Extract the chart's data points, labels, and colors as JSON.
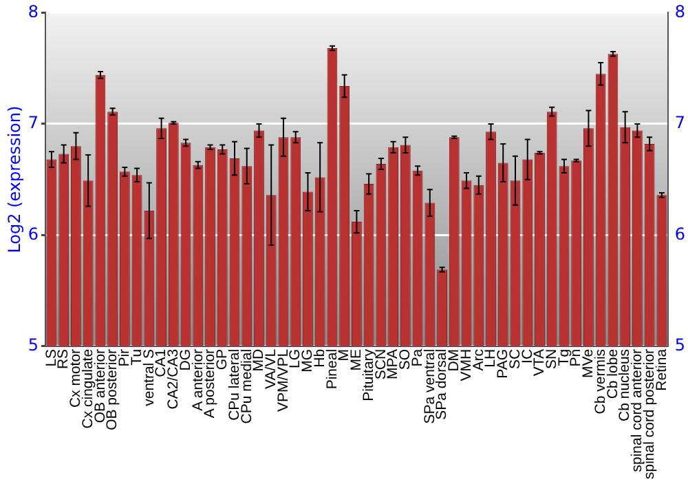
{
  "chart_data": {
    "type": "bar",
    "ylabel": "Log2 (expression)",
    "categories": [
      "LS",
      "RS",
      "Cx motor",
      "Cx cingulate",
      "OB anterior",
      "OB posterior",
      "Pir",
      "Tu",
      "ventral S",
      "CA1",
      "CA2/CA3",
      "DG",
      "A anterior",
      "A posterior",
      "GP",
      "CPu lateral",
      "CPu medial",
      "MD",
      "VA/VL",
      "VPM/VPL",
      "LG",
      "MG",
      "Hb",
      "Pineal",
      "M",
      "ME",
      "Pituitary",
      "SCN",
      "MPA",
      "SO",
      "Pa",
      "SPa ventral",
      "SPa dorsal",
      "DM",
      "VMH",
      "Arc",
      "LH",
      "PAG",
      "SC",
      "IC",
      "VTA",
      "SN",
      "Tg",
      "Pn",
      "MVe",
      "Cb vermis",
      "Cb lobe",
      "Cb nucleus",
      "spinal cord anterior",
      "spinal cord posterior",
      "Retina"
    ],
    "values": [
      6.68,
      6.73,
      6.8,
      6.49,
      7.44,
      7.11,
      6.57,
      6.54,
      6.22,
      6.96,
      7.01,
      6.83,
      6.63,
      6.79,
      6.77,
      6.69,
      6.62,
      6.94,
      6.36,
      6.88,
      6.88,
      6.39,
      6.52,
      7.68,
      7.34,
      6.12,
      6.46,
      6.64,
      6.79,
      6.81,
      6.58,
      6.29,
      5.69,
      6.88,
      6.49,
      6.45,
      6.93,
      6.65,
      6.49,
      6.68,
      6.74,
      7.11,
      6.62,
      6.67,
      6.96,
      7.45,
      7.63,
      6.97,
      6.94,
      6.82,
      6.36
    ],
    "errors": [
      0.07,
      0.08,
      0.12,
      0.23,
      0.03,
      0.03,
      0.04,
      0.06,
      0.25,
      0.09,
      0.01,
      0.03,
      0.03,
      0.02,
      0.04,
      0.15,
      0.16,
      0.06,
      0.45,
      0.17,
      0.05,
      0.17,
      0.31,
      0.02,
      0.1,
      0.1,
      0.09,
      0.05,
      0.05,
      0.07,
      0.04,
      0.12,
      0.02,
      0.01,
      0.07,
      0.08,
      0.07,
      0.17,
      0.22,
      0.18,
      0.01,
      0.04,
      0.06,
      0.01,
      0.16,
      0.1,
      0.02,
      0.14,
      0.06,
      0.06,
      0.02
    ],
    "color": "#b83232",
    "ylim": [
      5,
      8
    ],
    "yticks": [
      5,
      6,
      7,
      8
    ],
    "y2lim": [
      5,
      8
    ],
    "y2ticks": [
      5,
      6,
      7,
      8
    ],
    "grid": "y"
  }
}
